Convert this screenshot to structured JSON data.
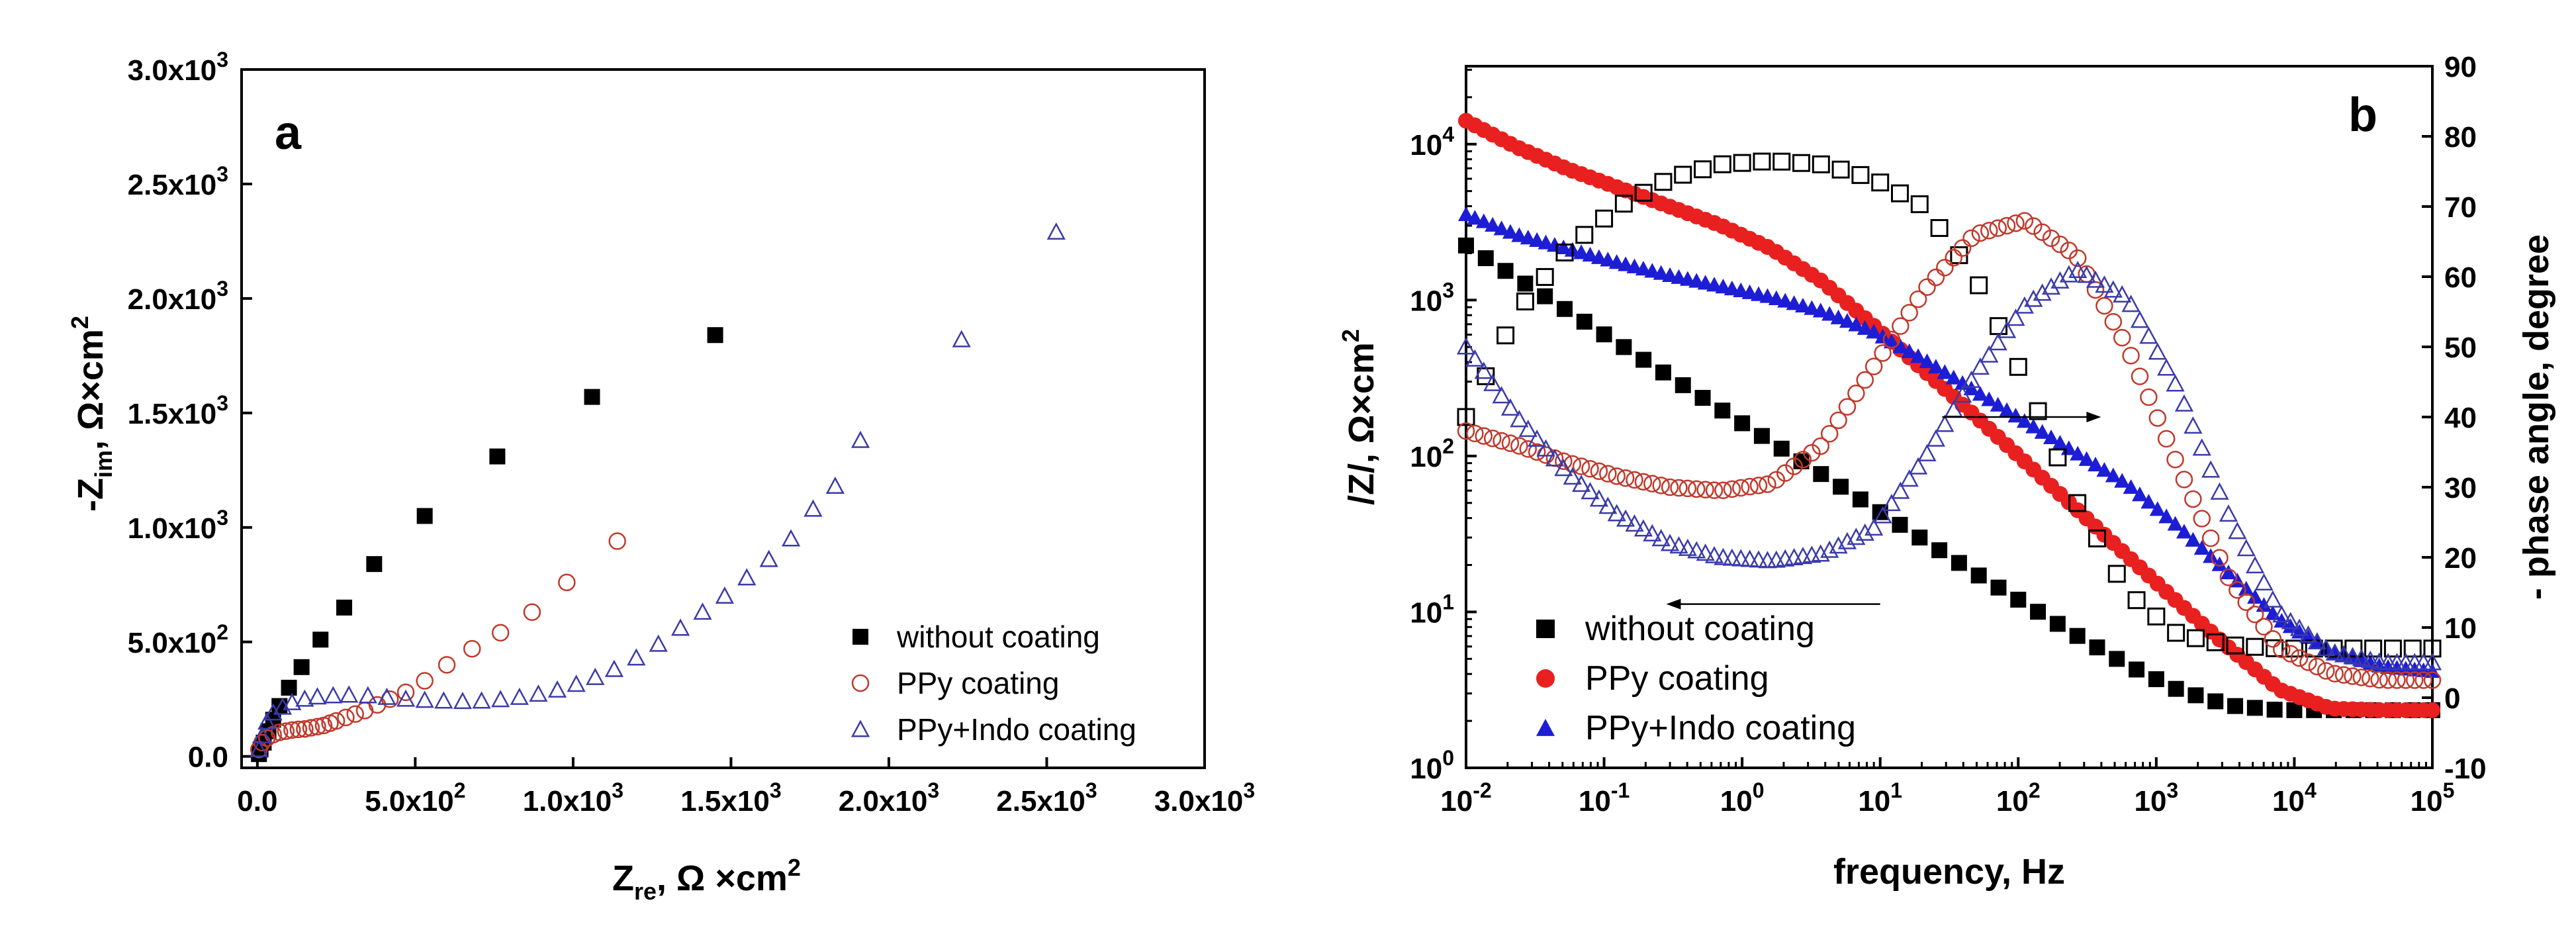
{
  "chart_data": [
    {
      "type": "scatter",
      "panel_label": "a",
      "xlabel": "Z",
      "xlabel_sub": "re",
      "xlabel_unit": ", Ω ×cm",
      "ylabel": "-Z",
      "ylabel_sub": "im",
      "ylabel_unit": ", Ω×cm",
      "xlim": [
        -50,
        3000
      ],
      "ylim": [
        -50,
        3000
      ],
      "xticks": [
        0,
        500,
        1000,
        1500,
        2000,
        2500,
        3000
      ],
      "xtick_labels": [
        "0.0",
        "5.0x10",
        "1.0x10",
        "1.5x10",
        "2.0x10",
        "2.5x10",
        "3.0x10"
      ],
      "xtick_sups": [
        "",
        "2",
        "3",
        "3",
        "3",
        "3",
        "3"
      ],
      "yticks": [
        0,
        500,
        1000,
        1500,
        2000,
        2500,
        3000
      ],
      "ytick_labels": [
        "0.0",
        "5.0x10",
        "1.0x10",
        "1.5x10",
        "2.0x10",
        "2.5x10",
        "3.0x10"
      ],
      "ytick_sups": [
        "",
        "2",
        "3",
        "3",
        "3",
        "3",
        "3"
      ],
      "legend_position": "bottom-right",
      "series": [
        {
          "name": "without coating",
          "marker": "filled-square",
          "color": "#000000",
          "x": [
            5,
            10,
            20,
            35,
            50,
            70,
            100,
            140,
            200,
            275,
            370,
            530,
            760,
            1060,
            1450
          ],
          "y": [
            10,
            30,
            60,
            110,
            160,
            220,
            300,
            390,
            510,
            650,
            840,
            1050,
            1310,
            1570,
            1840
          ]
        },
        {
          "name": "PPy coating",
          "marker": "open-circle",
          "color": "#c0392b",
          "x": [
            5,
            15,
            30,
            50,
            70,
            90,
            110,
            130,
            150,
            170,
            190,
            210,
            230,
            250,
            280,
            310,
            340,
            380,
            420,
            470,
            530,
            600,
            680,
            770,
            870,
            980,
            1140
          ],
          "y": [
            30,
            60,
            80,
            95,
            105,
            110,
            115,
            118,
            120,
            125,
            130,
            135,
            145,
            155,
            170,
            185,
            200,
            225,
            250,
            280,
            330,
            400,
            470,
            540,
            630,
            760,
            940
          ]
        },
        {
          "name": "PPy+Indo coating",
          "marker": "open-triangle",
          "color": "#3a3aaa",
          "x": [
            5,
            15,
            30,
            50,
            80,
            110,
            150,
            190,
            240,
            290,
            350,
            410,
            470,
            530,
            590,
            650,
            710,
            770,
            830,
            890,
            950,
            1010,
            1070,
            1130,
            1200,
            1270,
            1340,
            1410,
            1480,
            1550,
            1620,
            1690,
            1760,
            1830,
            1910,
            2230,
            2530
          ],
          "y": [
            30,
            90,
            150,
            190,
            215,
            235,
            250,
            260,
            265,
            268,
            265,
            258,
            250,
            245,
            242,
            240,
            242,
            248,
            258,
            272,
            290,
            315,
            345,
            380,
            430,
            490,
            560,
            630,
            700,
            780,
            860,
            950,
            1080,
            1180,
            1380,
            1820,
            2290
          ]
        }
      ]
    },
    {
      "type": "scatter",
      "panel_label": "b",
      "xlabel": "frequency, Hz",
      "ylabel_left": "/Z/, Ω×cm",
      "ylabel_right": "- phase angle, degree",
      "xscale": "log",
      "yscale_left": "log",
      "xlim": [
        0.01,
        100000
      ],
      "ylim_left": [
        1,
        31622.8
      ],
      "ylim_right": [
        -10,
        90
      ],
      "xtick_exps": [
        "-2",
        "-1",
        "0",
        "1",
        "2",
        "3",
        "4",
        "5"
      ],
      "ytick_exps_left": [
        "0",
        "1",
        "2",
        "3",
        "4"
      ],
      "yticks_right": [
        -10,
        0,
        10,
        20,
        30,
        40,
        50,
        60,
        70,
        80,
        90
      ],
      "tick_base": "10",
      "legend_position": "bottom-left",
      "series": [
        {
          "name": "without coating",
          "quantity": "|Z|",
          "axis": "left",
          "marker": "filled-square",
          "color": "#000000",
          "logf": [
            -2,
            5
          ],
          "log_values": [
            3.35,
            3.14,
            2.93,
            2.72,
            2.51,
            2.3,
            2.09,
            1.88,
            1.67,
            1.46,
            1.25,
            1.05,
            0.85,
            0.66,
            0.5,
            0.4,
            0.37,
            0.37,
            0.37,
            0.37
          ]
        },
        {
          "name": "PPy coating",
          "quantity": "|Z|",
          "axis": "left",
          "marker": "filled-circle",
          "color": "#e8201f",
          "logf": [
            -2,
            5
          ],
          "log_values": [
            4.15,
            3.98,
            3.84,
            3.72,
            3.6,
            3.48,
            3.33,
            3.12,
            2.84,
            2.55,
            2.26,
            1.96,
            1.66,
            1.36,
            1.06,
            0.77,
            0.5,
            0.38,
            0.37,
            0.37
          ]
        },
        {
          "name": "PPy+Indo coating",
          "quantity": "|Z|",
          "axis": "left",
          "marker": "filled-triangle",
          "color": "#1d1dd6",
          "logf": [
            -2,
            5
          ],
          "log_values": [
            3.55,
            3.42,
            3.33,
            3.24,
            3.16,
            3.09,
            3.02,
            2.93,
            2.8,
            2.62,
            2.42,
            2.22,
            2.02,
            1.82,
            1.55,
            1.25,
            0.95,
            0.75,
            0.65,
            0.62
          ]
        },
        {
          "name": "without coating",
          "quantity": "phase",
          "axis": "right",
          "marker": "open-square",
          "color": "#000000",
          "logf": [
            -2,
            5
          ],
          "values": [
            40,
            55,
            64,
            70,
            74,
            76,
            76.5,
            76,
            74,
            70,
            60,
            45,
            28,
            15,
            9,
            7.5,
            7,
            7,
            7,
            7
          ]
        },
        {
          "name": "PPy coating",
          "quantity": "phase",
          "axis": "right",
          "marker": "open-circle",
          "color": "#c0392b",
          "logf": [
            -2,
            5
          ],
          "values": [
            38,
            36,
            33.5,
            31.5,
            30,
            29.5,
            30.5,
            36,
            47,
            58,
            66,
            68,
            63,
            50,
            33,
            17,
            7,
            3.5,
            2.5,
            2.5
          ]
        },
        {
          "name": "PPy+Indo coating",
          "quantity": "phase",
          "axis": "right",
          "marker": "open-triangle",
          "color": "#3a3aaa",
          "logf": [
            -2,
            5
          ],
          "values": [
            50,
            40,
            32,
            26,
            22,
            20,
            19.5,
            20.5,
            24,
            34,
            46,
            56,
            61,
            57,
            44,
            26,
            12,
            6.5,
            5,
            5
          ]
        }
      ],
      "arrows": [
        {
          "from_logf": 1.45,
          "to_logf": 2.6,
          "value": 40,
          "axis": "right",
          "points_to": "right axis"
        },
        {
          "from_logf": 1.0,
          "to_logf": -0.55,
          "value": 1.05,
          "axis": "left",
          "points_to": "left axis"
        }
      ]
    }
  ]
}
